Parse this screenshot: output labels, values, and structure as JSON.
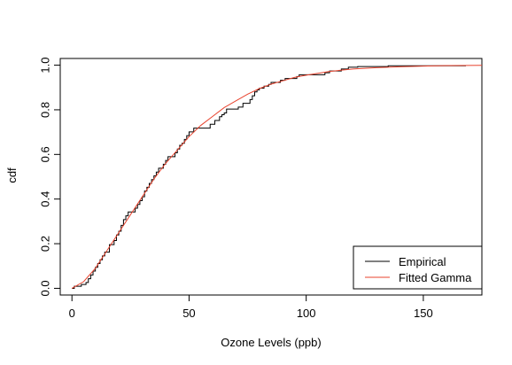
{
  "chart_data": {
    "type": "line",
    "title": "",
    "xlabel": "Ozone Levels (ppb)",
    "ylabel": "cdf",
    "xlim": [
      -5,
      175
    ],
    "ylim": [
      -0.03,
      1.03
    ],
    "xticks": [
      0,
      50,
      100,
      150
    ],
    "xtick_labels": [
      "0",
      "50",
      "100",
      "150"
    ],
    "yticks": [
      0.0,
      0.2,
      0.4,
      0.6,
      0.8,
      1.0
    ],
    "ytick_labels": [
      "0.0",
      "0.2",
      "0.4",
      "0.6",
      "0.8",
      "1.0"
    ],
    "grid": false,
    "legend_position": "bottom-right",
    "series": [
      {
        "name": "Empirical",
        "color": "#000000",
        "style": "step",
        "x": [
          1,
          4,
          6,
          7,
          8,
          9,
          10,
          11,
          12,
          13,
          14,
          16,
          18,
          19,
          20,
          21,
          22,
          23,
          24,
          27,
          28,
          29,
          30,
          31,
          32,
          33,
          34,
          35,
          36,
          37,
          39,
          40,
          41,
          44,
          45,
          46,
          47,
          48,
          49,
          50,
          52,
          59,
          61,
          63,
          64,
          65,
          66,
          71,
          73,
          76,
          77,
          78,
          79,
          80,
          82,
          84,
          85,
          89,
          91,
          96,
          97,
          108,
          110,
          115,
          118,
          122,
          135,
          168
        ],
        "y": [
          0.009,
          0.017,
          0.026,
          0.043,
          0.06,
          0.077,
          0.094,
          0.111,
          0.128,
          0.145,
          0.162,
          0.196,
          0.214,
          0.239,
          0.256,
          0.282,
          0.308,
          0.325,
          0.342,
          0.359,
          0.376,
          0.393,
          0.41,
          0.436,
          0.453,
          0.47,
          0.487,
          0.504,
          0.521,
          0.538,
          0.556,
          0.573,
          0.59,
          0.607,
          0.624,
          0.641,
          0.65,
          0.667,
          0.684,
          0.701,
          0.718,
          0.735,
          0.752,
          0.769,
          0.778,
          0.786,
          0.803,
          0.812,
          0.829,
          0.846,
          0.863,
          0.88,
          0.889,
          0.897,
          0.906,
          0.914,
          0.923,
          0.932,
          0.94,
          0.949,
          0.957,
          0.966,
          0.974,
          0.983,
          0.991,
          0.994,
          0.997,
          1.0
        ]
      },
      {
        "name": "Fitted Gamma",
        "color": "#e8432e",
        "style": "line",
        "x": [
          0,
          5,
          10,
          15,
          20,
          25,
          30,
          35,
          40,
          45,
          50,
          55,
          60,
          65,
          70,
          75,
          80,
          85,
          90,
          95,
          100,
          110,
          120,
          130,
          140,
          150,
          160,
          175
        ],
        "y": [
          0.0,
          0.03,
          0.09,
          0.17,
          0.25,
          0.33,
          0.41,
          0.49,
          0.56,
          0.62,
          0.68,
          0.73,
          0.77,
          0.81,
          0.84,
          0.87,
          0.895,
          0.915,
          0.93,
          0.945,
          0.955,
          0.972,
          0.983,
          0.989,
          0.993,
          0.996,
          0.998,
          0.999
        ]
      }
    ]
  }
}
